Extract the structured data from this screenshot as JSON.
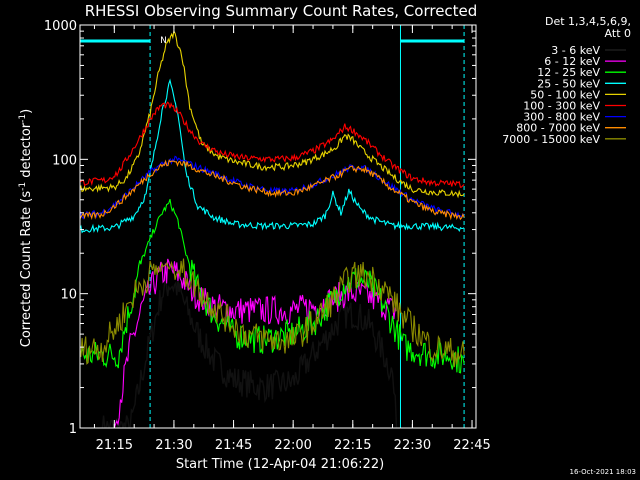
{
  "chart_data": {
    "type": "line",
    "title": "RHESSI Observing Summary Count Rates, Corrected",
    "xlabel": "Start Time (12-Apr-04 21:06:22)",
    "ylabel_parts": [
      "Corrected Count Rate (s",
      "-1",
      " detector",
      "-1",
      ")"
    ],
    "yscale": "log",
    "ylim": [
      1,
      1000
    ],
    "xlim": [
      "21:06:22",
      "22:46:00"
    ],
    "x_ticks": [
      "21:15",
      "21:30",
      "21:45",
      "22:00",
      "22:15",
      "22:30",
      "22:45"
    ],
    "y_ticks": [
      "1",
      "10",
      "100",
      "1000"
    ],
    "legend_header": [
      "Det 1,3,4,5,6,9,",
      "Att 0"
    ],
    "timestamp": "16-Oct-2021 18:03",
    "flag_label": "N",
    "night_intervals": [
      [
        "21:06:22",
        "21:24:00"
      ],
      [
        "22:27:00",
        "22:43:00"
      ]
    ],
    "flag_bars": [
      [
        "21:06:22",
        "21:24:00"
      ],
      [
        "22:27:00",
        "22:43:00"
      ]
    ],
    "data_gaps": [
      [
        "21:06:22",
        "21:08:00"
      ],
      [
        "22:26:00",
        "22:28:00"
      ],
      [
        "22:43:00",
        "22:46:00"
      ]
    ],
    "series": [
      {
        "name": "3 - 6 keV",
        "color": "#000000",
        "x": [
          "21:12",
          "21:19",
          "21:22",
          "21:25",
          "21:27",
          "21:29",
          "21:31",
          "21:33",
          "21:36",
          "21:40",
          "21:45",
          "21:52",
          "22:00",
          "22:05",
          "22:10",
          "22:13",
          "22:16",
          "22:19",
          "22:22",
          "22:25",
          "22:26"
        ],
        "values": [
          1.0,
          1.0,
          2.5,
          6,
          10,
          12,
          11,
          8,
          5,
          3.2,
          2.3,
          2.0,
          2.2,
          3.5,
          5.5,
          7,
          7,
          6,
          4,
          2.5,
          1.0
        ]
      },
      {
        "name": "6 - 12 keV",
        "color": "#ff00ff",
        "x": [
          "21:15",
          "21:19",
          "21:22",
          "21:25",
          "21:27",
          "21:29",
          "21:31",
          "21:33",
          "21:36",
          "21:40",
          "21:45",
          "21:52",
          "22:00",
          "22:05",
          "22:10",
          "22:13",
          "22:16",
          "22:19",
          "22:22",
          "22:25",
          "22:26"
        ],
        "values": [
          1.0,
          4.0,
          8,
          12,
          14,
          15,
          14,
          12,
          9.5,
          8,
          7.5,
          7.5,
          7.5,
          8,
          9,
          10,
          10,
          9.5,
          8.5,
          7.5,
          7.5
        ]
      },
      {
        "name": "12 - 25 keV",
        "color": "#00ff00",
        "x": [
          "21:06",
          "21:16",
          "21:19",
          "21:22",
          "21:25",
          "21:27",
          "21:29",
          "21:31",
          "21:33",
          "21:36",
          "21:40",
          "21:45",
          "21:52",
          "22:00",
          "22:05",
          "22:10",
          "22:13",
          "22:16",
          "22:19",
          "22:22",
          "22:25",
          "22:28",
          "22:35",
          "22:40",
          "22:43"
        ],
        "values": [
          3.5,
          3.5,
          8,
          18,
          30,
          40,
          48,
          35,
          20,
          11,
          7,
          5,
          4.5,
          5,
          6,
          9,
          12,
          13,
          12,
          9,
          6,
          4,
          3.5,
          3.5,
          3.0
        ]
      },
      {
        "name": "25 - 50 keV",
        "color": "#00ffff",
        "x": [
          "21:06",
          "21:15",
          "21:20",
          "21:23",
          "21:25",
          "21:27",
          "21:29",
          "21:31",
          "21:33",
          "21:36",
          "21:40",
          "21:45",
          "21:52",
          "22:00",
          "22:05",
          "22:08",
          "22:10",
          "22:12",
          "22:14",
          "22:17",
          "22:20",
          "22:25",
          "22:30",
          "22:40",
          "22:43"
        ],
        "values": [
          30,
          31,
          38,
          55,
          110,
          230,
          370,
          220,
          80,
          45,
          37,
          33,
          32,
          32,
          33,
          38,
          55,
          40,
          58,
          42,
          36,
          32,
          32,
          31,
          31
        ]
      },
      {
        "name": "50 - 100 keV",
        "color": "#e6d200",
        "x": [
          "21:06",
          "21:15",
          "21:18",
          "21:21",
          "21:24",
          "21:26",
          "21:28",
          "21:30",
          "21:32",
          "21:34",
          "21:37",
          "21:41",
          "21:46",
          "21:52",
          "21:58",
          "22:03",
          "22:08",
          "22:11",
          "22:13",
          "22:15",
          "22:17",
          "22:20",
          "22:25",
          "22:30",
          "22:35",
          "22:43"
        ],
        "values": [
          60,
          62,
          72,
          105,
          220,
          420,
          700,
          880,
          600,
          250,
          130,
          105,
          95,
          88,
          88,
          95,
          110,
          125,
          150,
          140,
          120,
          100,
          75,
          60,
          57,
          55
        ]
      },
      {
        "name": "100 - 300 keV",
        "color": "#ff0000",
        "x": [
          "21:06",
          "21:13",
          "21:16",
          "21:19",
          "21:22",
          "21:25",
          "21:27",
          "21:29",
          "21:31",
          "21:34",
          "21:37",
          "21:42",
          "21:48",
          "21:55",
          "22:00",
          "22:05",
          "22:10",
          "22:13",
          "22:15",
          "22:18",
          "22:21",
          "22:25",
          "22:30",
          "22:35",
          "22:43"
        ],
        "values": [
          67,
          70,
          80,
          110,
          155,
          220,
          255,
          250,
          225,
          165,
          130,
          110,
          102,
          100,
          102,
          115,
          140,
          175,
          165,
          140,
          115,
          90,
          72,
          67,
          65
        ]
      },
      {
        "name": "300 - 800 keV",
        "color": "#0000ff",
        "x": [
          "21:06",
          "21:12",
          "21:16",
          "21:20",
          "21:24",
          "21:27",
          "21:30",
          "21:33",
          "21:37",
          "21:42",
          "21:48",
          "21:55",
          "22:00",
          "22:05",
          "22:10",
          "22:14",
          "22:17",
          "22:20",
          "22:24",
          "22:30",
          "22:36",
          "22:43"
        ],
        "values": [
          38,
          40,
          48,
          62,
          80,
          92,
          100,
          95,
          85,
          75,
          64,
          58,
          58,
          65,
          75,
          86,
          88,
          80,
          65,
          50,
          42,
          38
        ]
      },
      {
        "name": "800 - 7000 keV",
        "color": "#ff8c00",
        "x": [
          "21:06",
          "21:12",
          "21:16",
          "21:20",
          "21:24",
          "21:27",
          "21:30",
          "21:33",
          "21:37",
          "21:42",
          "21:48",
          "21:55",
          "22:00",
          "22:05",
          "22:10",
          "22:14",
          "22:17",
          "22:20",
          "22:24",
          "22:30",
          "22:36",
          "22:43"
        ],
        "values": [
          37,
          39,
          47,
          60,
          78,
          90,
          97,
          92,
          82,
          72,
          62,
          56,
          56,
          63,
          73,
          84,
          86,
          78,
          63,
          48,
          40,
          37
        ]
      },
      {
        "name": "7000 - 15000 keV",
        "color": "#8b8b00",
        "x": [
          "21:06",
          "21:12",
          "21:16",
          "21:20",
          "21:24",
          "21:27",
          "21:30",
          "21:33",
          "21:37",
          "21:42",
          "21:48",
          "21:55",
          "22:00",
          "22:05",
          "22:10",
          "22:14",
          "22:17",
          "22:20",
          "22:24",
          "22:28",
          "22:35",
          "22:43"
        ],
        "values": [
          3.8,
          4.0,
          6,
          10,
          14,
          16,
          16,
          14,
          10,
          7,
          5,
          4.5,
          4.5,
          6,
          9,
          13,
          14,
          13,
          10,
          6.5,
          4.0,
          3.5
        ]
      }
    ]
  }
}
